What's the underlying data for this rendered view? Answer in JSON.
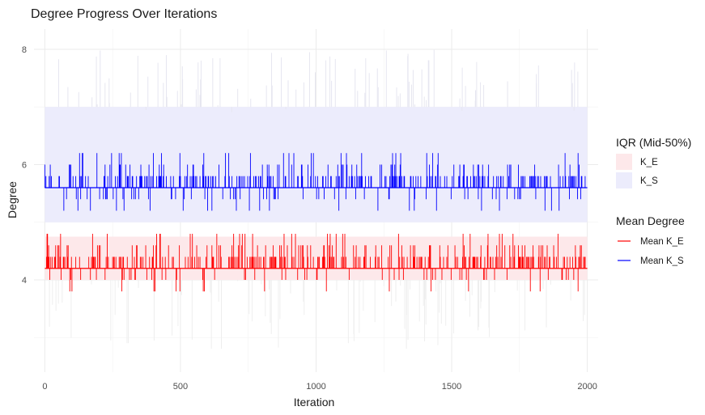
{
  "chart_data": {
    "type": "line",
    "title": "Degree Progress Over Iterations",
    "xlabel": "Iteration",
    "ylabel": "Degree",
    "xlim": [
      -40,
      2040
    ],
    "ylim": [
      2.4,
      8.35
    ],
    "x_ticks": [
      0,
      500,
      1000,
      1500,
      2000
    ],
    "x_tick_labels": [
      "0",
      "500",
      "1000",
      "1500",
      "2000"
    ],
    "y_ticks": [
      4,
      6,
      8
    ],
    "y_tick_labels": [
      "4",
      "6",
      "8"
    ],
    "y_minor_gridlines": [
      3,
      5,
      7
    ],
    "x_minor_gridlines": [
      250,
      750,
      1250,
      1750
    ],
    "grid": true,
    "iterations": [
      0,
      2000
    ],
    "iqr_bands": [
      {
        "name": "K_E",
        "lower": 4.0,
        "upper": 4.75,
        "color": "#fde8ea"
      },
      {
        "name": "K_S",
        "lower": 5.0,
        "upper": 7.0,
        "color": "#ececfc"
      }
    ],
    "series": [
      {
        "name": "Mean K_E",
        "color": "#ff0000",
        "baseline": 4.2,
        "up_levels": [
          4.4,
          4.6,
          4.8
        ],
        "down_levels": [
          4.0,
          3.8
        ]
      },
      {
        "name": "Mean K_S",
        "color": "#0000ff",
        "baseline": 5.6,
        "up_levels": [
          5.8,
          6.0,
          6.2
        ],
        "down_levels": [
          5.4,
          5.2
        ]
      }
    ],
    "legend": {
      "placement": "right",
      "groups": [
        {
          "title": "IQR (Mid-50%)",
          "entries": [
            "K_E",
            "K_S"
          ]
        },
        {
          "title": "Mean Degree",
          "entries": [
            "Mean K_E",
            "Mean K_S"
          ]
        }
      ]
    }
  }
}
